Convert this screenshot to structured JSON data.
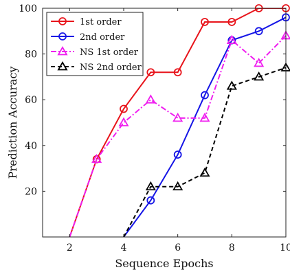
{
  "chart_data": {
    "type": "line",
    "xlabel": "Sequence Epochs",
    "ylabel": "Prediction Accuracy",
    "xlim": [
      1,
      10
    ],
    "ylim": [
      0,
      100
    ],
    "xticks": [
      2,
      4,
      6,
      8,
      10
    ],
    "yticks": [
      20,
      40,
      60,
      80,
      100
    ],
    "grid": false,
    "legend_position": "top-left",
    "series": [
      {
        "name": "1st order",
        "color": "#e8141b",
        "marker": "circle",
        "dash": "solid",
        "x": [
          2,
          3,
          4,
          5,
          6,
          7,
          8,
          9,
          10
        ],
        "y": [
          0,
          34,
          56,
          72,
          72,
          94,
          94,
          100,
          100
        ]
      },
      {
        "name": "2nd order",
        "color": "#1515e6",
        "marker": "circle",
        "dash": "solid",
        "x": [
          4,
          5,
          6,
          7,
          8,
          9,
          10
        ],
        "y": [
          0,
          16,
          36,
          62,
          86,
          90,
          96
        ]
      },
      {
        "name": "NS 1st order",
        "color": "#ef1fef",
        "marker": "triangle",
        "dash": "dashdot",
        "x": [
          2,
          3,
          4,
          5,
          6,
          7,
          8,
          9,
          10
        ],
        "y": [
          0,
          34,
          50,
          60,
          52,
          52,
          86,
          76,
          88
        ]
      },
      {
        "name": "NS 2nd order",
        "color": "#000000",
        "marker": "triangle",
        "dash": "dashed",
        "x": [
          4,
          5,
          6,
          7,
          8,
          9,
          10
        ],
        "y": [
          0,
          22,
          22,
          28,
          66,
          70,
          74
        ]
      }
    ]
  }
}
